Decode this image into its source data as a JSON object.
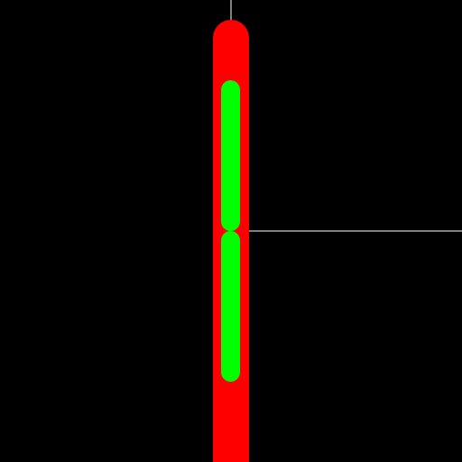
{
  "colors": {
    "background": "#000000",
    "guide_line": "#ffffff",
    "outer_capsule": "#ff0000",
    "inner_segment": "#00ff00"
  },
  "shapes": {
    "outer_capsule": "red-vertical-capsule",
    "inner_segments": [
      "green-capsule-upper",
      "green-capsule-lower"
    ],
    "guides": [
      "white-vertical-guide",
      "white-horizontal-guide"
    ]
  }
}
